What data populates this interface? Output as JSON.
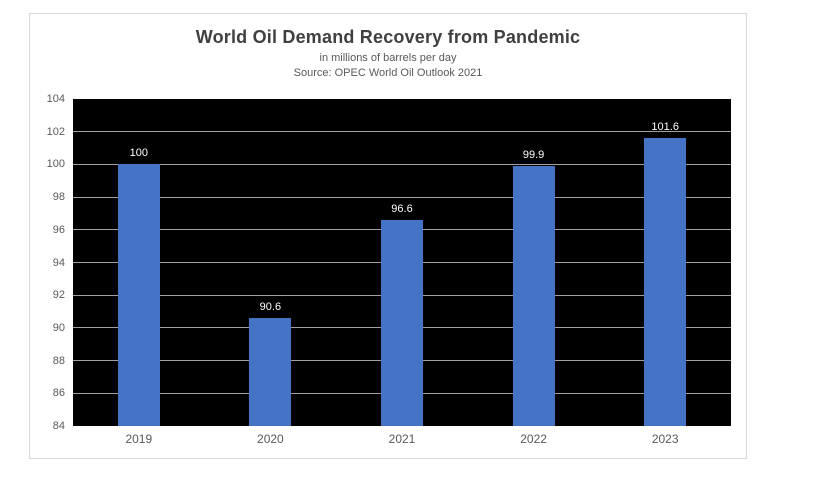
{
  "chart": {
    "title": "World Oil Demand Recovery from Pandemic",
    "subtitle": "in millions of barrels per day",
    "source": "Source: OPEC World Oil Outlook 2021"
  },
  "chart_data": {
    "type": "bar",
    "title": "World Oil Demand Recovery from Pandemic",
    "subtitle": "in millions of barrels per day",
    "source_note": "Source: OPEC World Oil Outlook 2021",
    "categories": [
      "2019",
      "2020",
      "2021",
      "2022",
      "2023"
    ],
    "values": [
      100,
      90.6,
      96.6,
      99.9,
      101.6
    ],
    "data_labels": [
      "100",
      "90.6",
      "96.6",
      "99.9",
      "101.6"
    ],
    "xlabel": "",
    "ylabel": "",
    "ylim": [
      84,
      104
    ],
    "ytick_step": 2,
    "yticks": [
      84,
      86,
      88,
      90,
      92,
      94,
      96,
      98,
      100,
      102,
      104
    ],
    "grid": true,
    "legend": false,
    "colors": {
      "bar": "#4472C4",
      "plot_background": "#000000",
      "gridline": "#a0a0a0",
      "data_label": "#ffffff",
      "axis_label": "#595959",
      "title": "#404040",
      "frame_border": "#d9d9d9",
      "page_background": "#ffffff"
    }
  }
}
